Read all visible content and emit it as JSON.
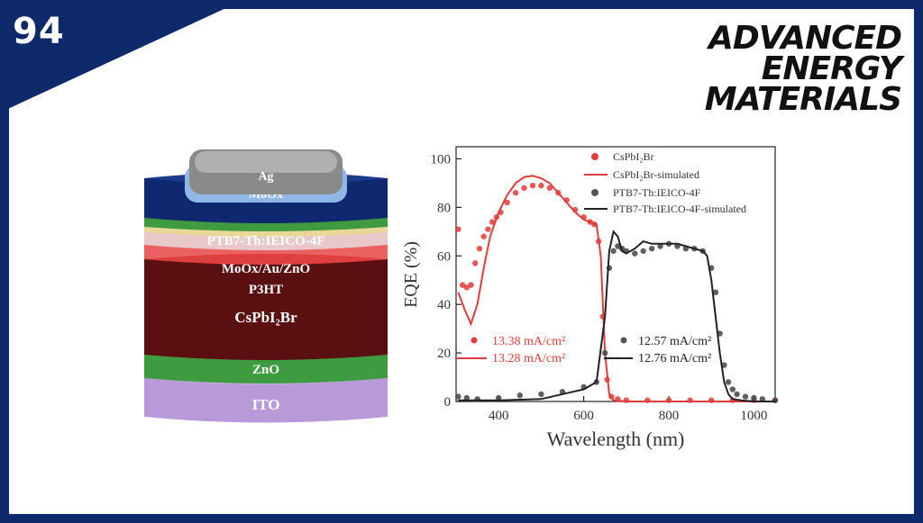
{
  "slide": {
    "number": "94"
  },
  "logo": {
    "lines": [
      "ADVANCED",
      "ENERGY",
      "MATERIALS"
    ]
  },
  "device": {
    "layers": [
      "Ag",
      "MoOx",
      "PTB7-Th:IEICO-4F",
      "MoOx/Au/ZnO",
      "P3HT",
      "CsPbI₂Br",
      "ZnO",
      "ITO"
    ]
  },
  "colors": {
    "frame": "#0f2a6b",
    "perovskite": "#e23b3b",
    "organic": "#222222"
  },
  "chart_data": {
    "type": "line",
    "xlabel": "Wavelength (nm)",
    "ylabel": "EQE (%)",
    "xlim": [
      300,
      1050
    ],
    "ylim": [
      0,
      105
    ],
    "xticks": [
      400,
      600,
      800,
      1000
    ],
    "yticks": [
      0,
      20,
      40,
      60,
      80,
      100
    ],
    "legend_position": "top-right",
    "series": [
      {
        "name": "CsPbI₂Br",
        "style": "markers",
        "color": "#e23b3b",
        "x": [
          305,
          315,
          325,
          335,
          345,
          355,
          365,
          375,
          385,
          395,
          405,
          420,
          440,
          460,
          480,
          500,
          520,
          540,
          560,
          580,
          600,
          615,
          625,
          635,
          645,
          655,
          665,
          680,
          700,
          750,
          800,
          850,
          900,
          950,
          1000,
          1050
        ],
        "y": [
          71,
          48,
          47,
          48,
          57,
          63,
          68,
          71,
          74,
          76,
          78,
          82,
          86,
          88,
          89,
          89,
          88,
          86,
          83,
          79,
          76,
          74,
          73,
          66,
          35,
          9,
          2,
          1,
          0.5,
          0.5,
          0.5,
          0.5,
          0.5,
          0.5,
          0.5,
          0.5
        ]
      },
      {
        "name": "CsPbI₂Br-simulated",
        "style": "line",
        "color": "#e23b3b",
        "x": [
          305,
          320,
          335,
          350,
          365,
          380,
          400,
          420,
          440,
          460,
          480,
          500,
          520,
          540,
          560,
          580,
          600,
          615,
          630,
          640,
          650,
          660,
          670,
          700,
          800,
          900,
          1000,
          1050
        ],
        "y": [
          45,
          38,
          32,
          40,
          55,
          68,
          78,
          85,
          90,
          92.5,
          93,
          92,
          90,
          86,
          82,
          78,
          75,
          74,
          73,
          60,
          20,
          3,
          0.5,
          0,
          0,
          0,
          0,
          0
        ]
      },
      {
        "name": "PTB7-Th:IEICO-4F",
        "style": "markers",
        "color": "#444444",
        "x": [
          305,
          325,
          350,
          400,
          450,
          500,
          550,
          600,
          630,
          650,
          660,
          670,
          680,
          690,
          700,
          720,
          740,
          760,
          780,
          800,
          820,
          840,
          860,
          880,
          900,
          910,
          920,
          930,
          940,
          950,
          960,
          980,
          1000,
          1020,
          1050
        ],
        "y": [
          2,
          1.5,
          1,
          1.5,
          2.5,
          3,
          4,
          6,
          8,
          20,
          55,
          62,
          64,
          63,
          62,
          61,
          62,
          63,
          64,
          65,
          64,
          63,
          63,
          62,
          55,
          45,
          28,
          15,
          8,
          5,
          3,
          2,
          1.5,
          1,
          0.5
        ]
      },
      {
        "name": "PTB7-Th:IEICO-4F-simulated",
        "style": "line",
        "color": "#222222",
        "x": [
          305,
          350,
          400,
          500,
          600,
          630,
          650,
          660,
          670,
          680,
          690,
          700,
          720,
          740,
          760,
          780,
          800,
          820,
          840,
          860,
          880,
          890,
          900,
          910,
          920,
          930,
          940,
          950,
          970,
          1000,
          1050
        ],
        "y": [
          0.5,
          0.5,
          0.5,
          1,
          5,
          8,
          35,
          62,
          70,
          68,
          62,
          61,
          63,
          66,
          65,
          65,
          65,
          65,
          64,
          63,
          62,
          60,
          50,
          35,
          20,
          8,
          3,
          1,
          0.5,
          0,
          0
        ]
      }
    ],
    "annotations": {
      "perovskite_measured": "13.38 mA/cm²",
      "perovskite_simulated": "13.28 mA/cm²",
      "organic_measured": "12.57 mA/cm²",
      "organic_simulated": "12.76 mA/cm²"
    }
  }
}
